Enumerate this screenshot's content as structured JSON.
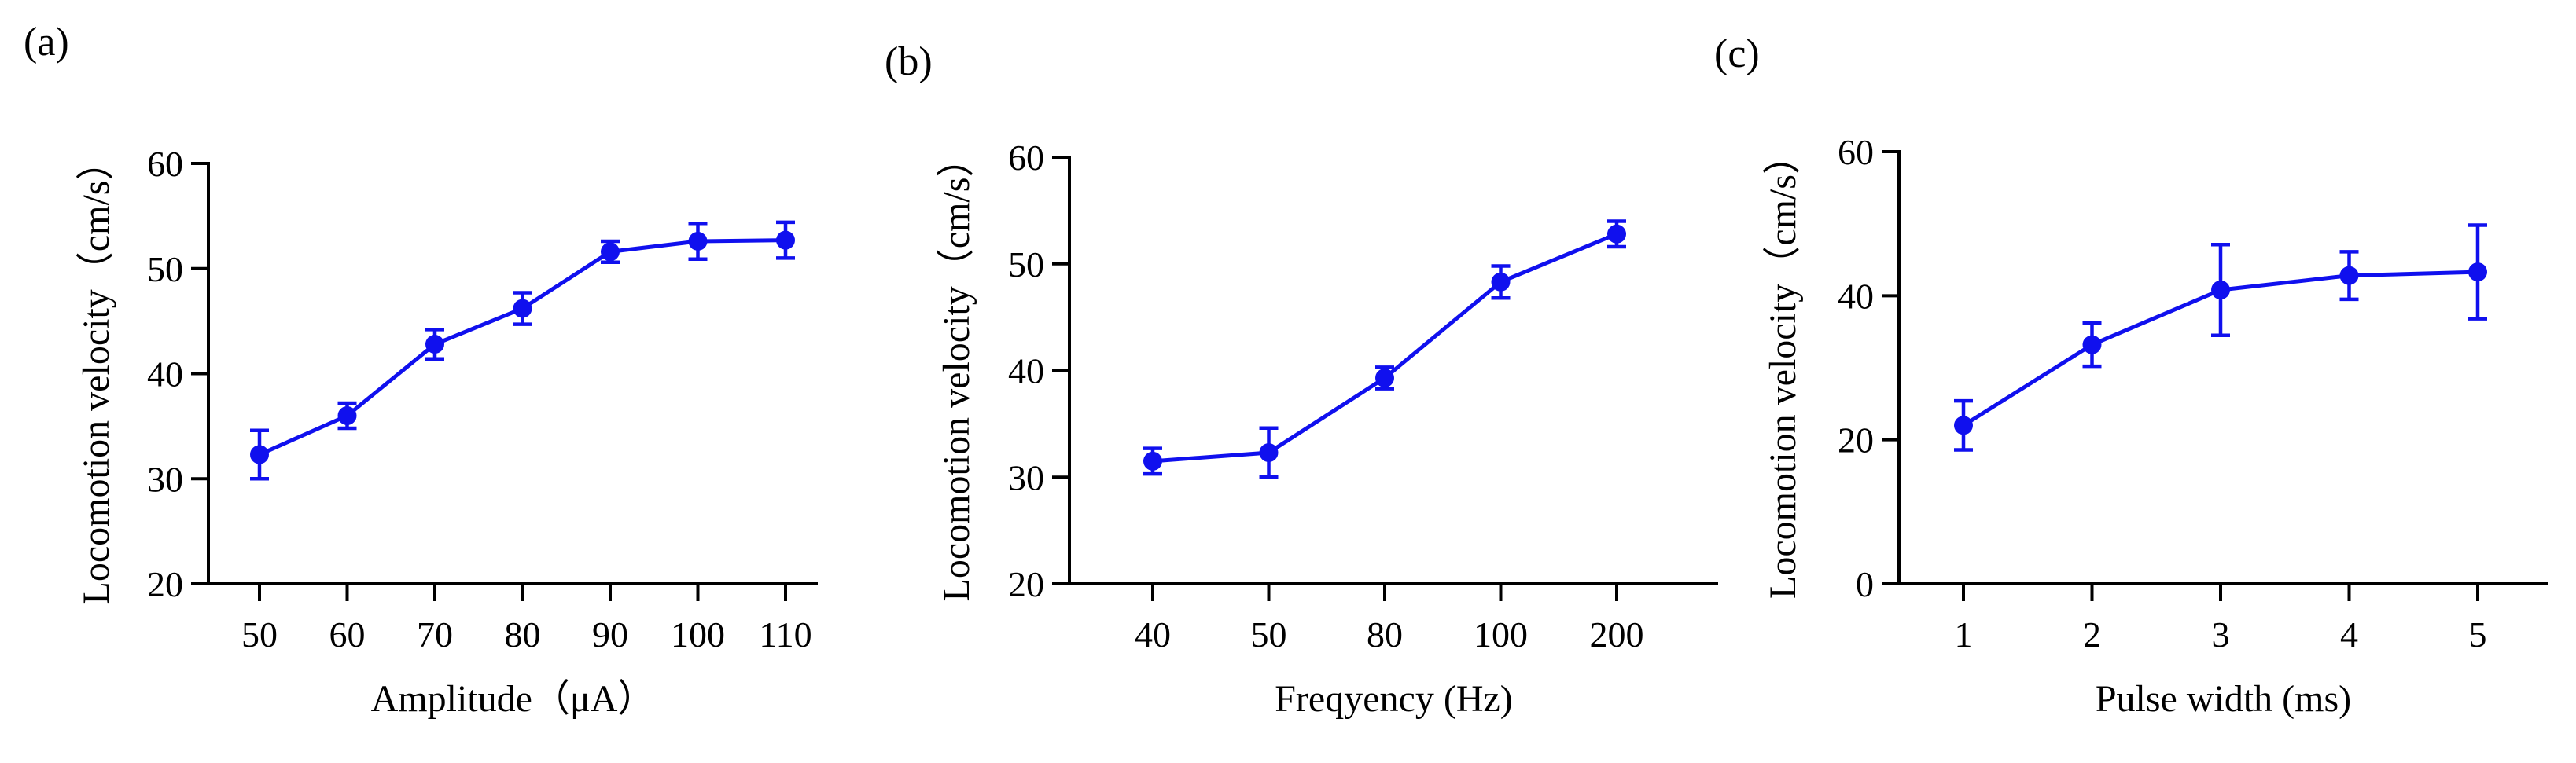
{
  "chart_data": [
    {
      "type": "line",
      "panel_label": "(a)",
      "categories": [
        "50",
        "60",
        "70",
        "80",
        "90",
        "100",
        "110"
      ],
      "values": [
        32.3,
        36.0,
        42.8,
        46.2,
        51.6,
        52.6,
        52.7
      ],
      "errors": [
        2.3,
        1.2,
        1.4,
        1.5,
        1.0,
        1.7,
        1.7
      ],
      "xlabel": "Amplitude（μA）",
      "ylabel": "Locomotion velocity（cm/s）",
      "ylim": [
        20,
        60
      ],
      "yticks": [
        20,
        30,
        40,
        50,
        60
      ],
      "color": "#1010ee"
    },
    {
      "type": "line",
      "panel_label": "(b)",
      "categories": [
        "40",
        "50",
        "80",
        "100",
        "200"
      ],
      "values": [
        31.5,
        32.3,
        39.3,
        48.3,
        52.8
      ],
      "errors": [
        1.2,
        2.3,
        1.0,
        1.5,
        1.2
      ],
      "xlabel": "Freqyency (Hz)",
      "ylabel": "Locomotion velocity（cm/s）",
      "ylim": [
        20,
        60
      ],
      "yticks": [
        20,
        30,
        40,
        50,
        60
      ],
      "color": "#1010ee"
    },
    {
      "type": "line",
      "panel_label": "(c)",
      "categories": [
        "1",
        "2",
        "3",
        "4",
        "5"
      ],
      "values": [
        22.0,
        33.2,
        40.8,
        42.8,
        43.3
      ],
      "errors": [
        3.4,
        3.0,
        6.3,
        3.3,
        6.5
      ],
      "xlabel": "Pulse width (ms)",
      "ylabel": "Locomotion velocity（cm/s）",
      "ylim": [
        0,
        60
      ],
      "yticks": [
        0,
        20,
        40,
        60
      ],
      "color": "#1010ee"
    }
  ]
}
